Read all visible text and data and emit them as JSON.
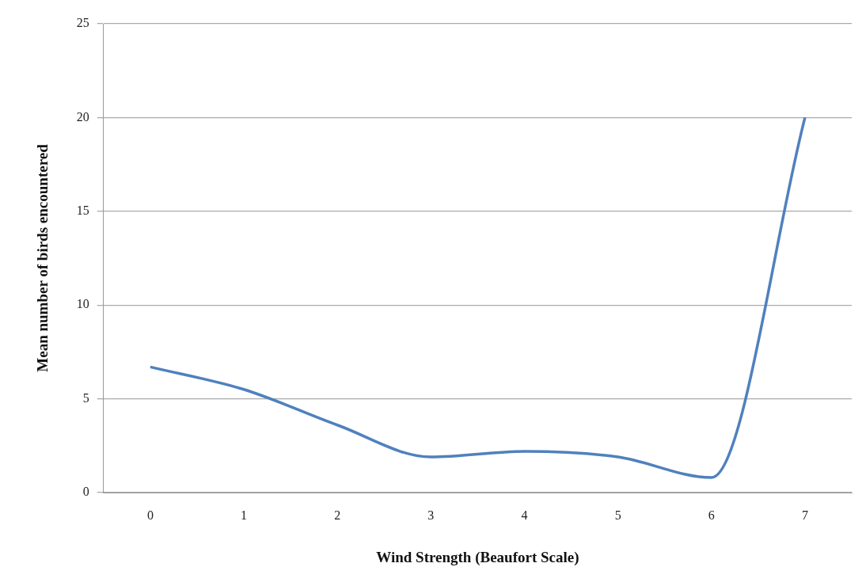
{
  "chart_data": {
    "type": "line",
    "xlabel": "Wind Strength (Beaufort Scale)",
    "ylabel": "Mean number of birds encountered",
    "categories": [
      "0",
      "1",
      "2",
      "3",
      "4",
      "5",
      "6",
      "7"
    ],
    "series": [
      {
        "color": "#4f81bd",
        "values": [
          6.7,
          5.5,
          3.6,
          1.9,
          2.2,
          1.9,
          0.8,
          20
        ]
      }
    ],
    "ylim": [
      0,
      25
    ],
    "yticks": [
      0,
      5,
      10,
      15,
      20,
      25
    ],
    "grid": "y",
    "legend": false,
    "marker": "none",
    "line_style": "solid"
  }
}
